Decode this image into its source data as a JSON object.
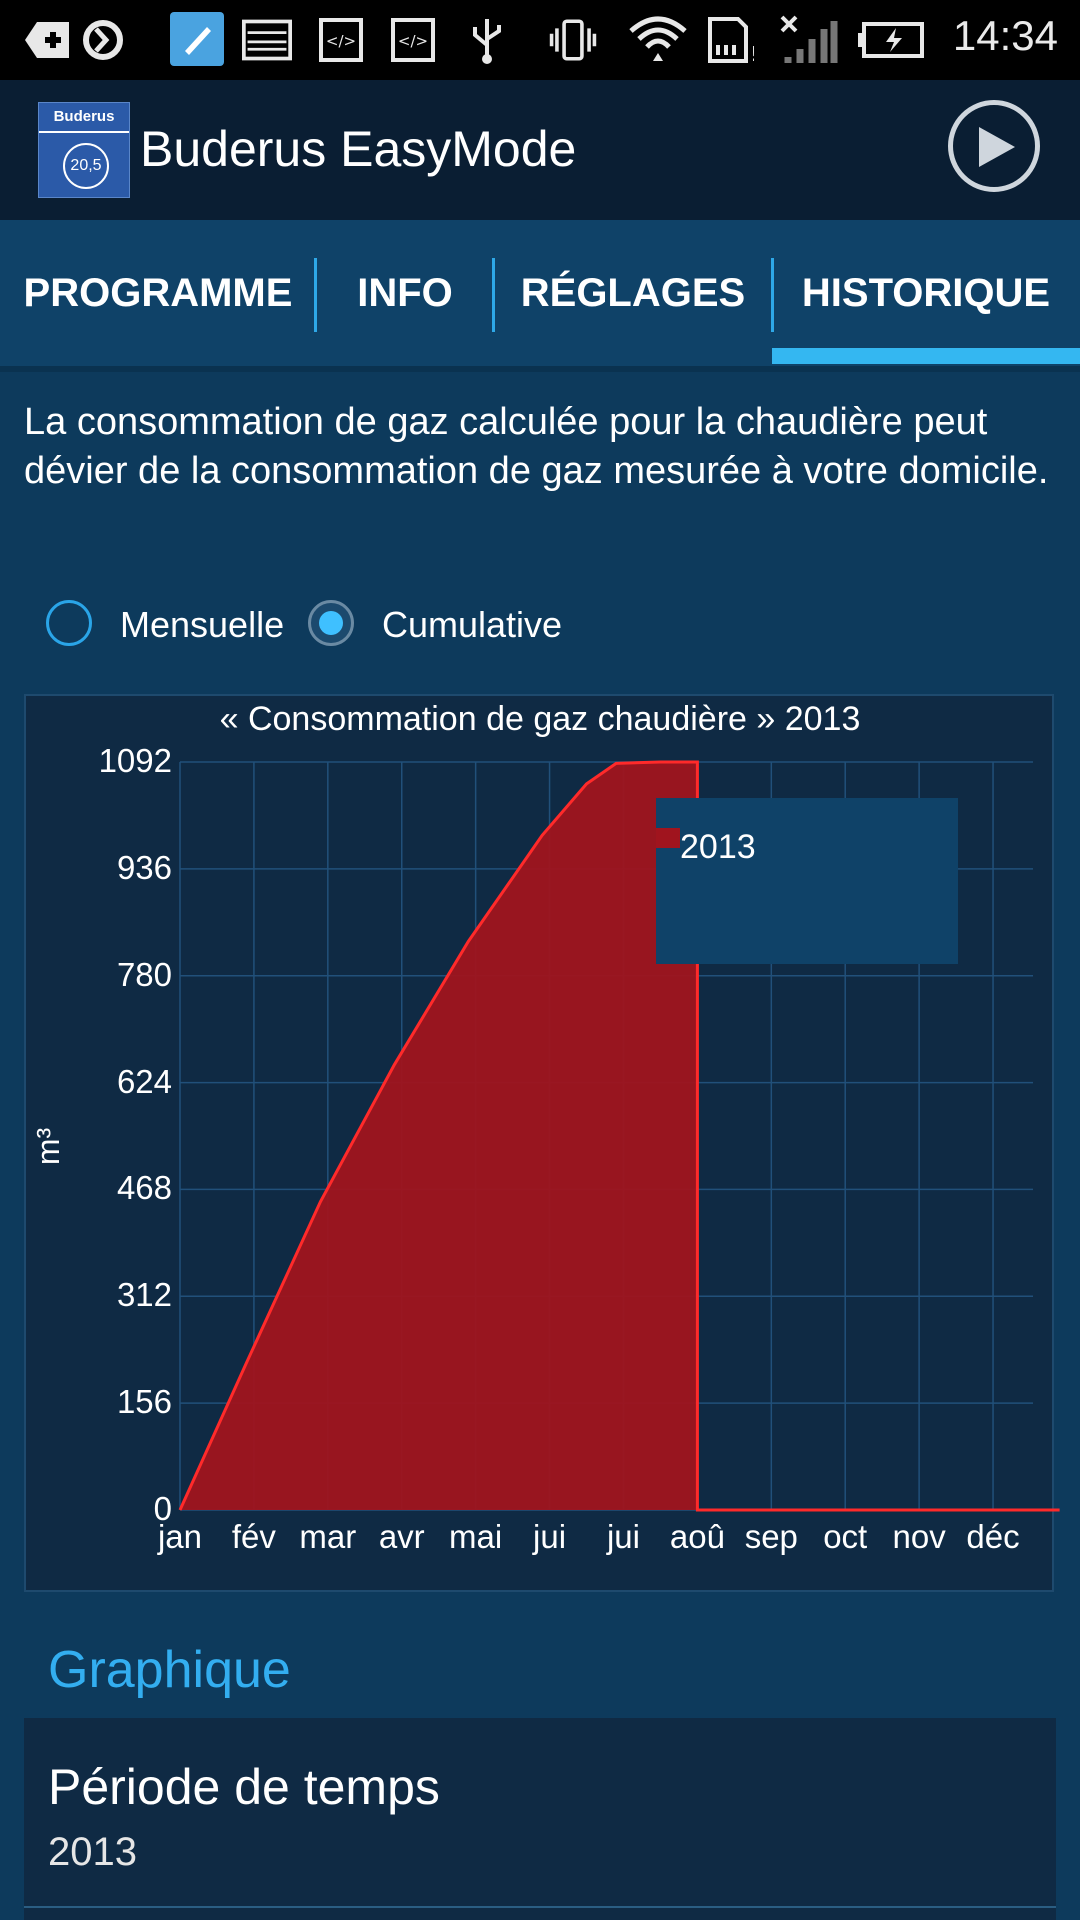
{
  "status_bar": {
    "time": "14:34",
    "icons": [
      "add-box-icon",
      "sync-icon",
      "brush-app-icon",
      "screenshot-icon",
      "code-icon",
      "code-icon",
      "usb-icon",
      "vibrate-icon",
      "wifi-icon",
      "sd-card-icon",
      "no-signal-icon",
      "battery-charging-icon"
    ]
  },
  "app_bar": {
    "title": "Buderus EasyMode",
    "logo_text": "Buderus",
    "logo_badge": "20,5"
  },
  "tabs": [
    {
      "label": "PROGRAMME"
    },
    {
      "label": "INFO"
    },
    {
      "label": "RÉGLAGES"
    },
    {
      "label": "HISTORIQUE",
      "selected": true
    }
  ],
  "description": "La consommation de gaz calculée pour la chaudière peut dévier de la consommation de gaz mesurée à votre domicile.",
  "view_mode": {
    "options": [
      {
        "label": "Mensuelle",
        "selected": false
      },
      {
        "label": "Cumulative",
        "selected": true
      }
    ]
  },
  "chart_data": {
    "type": "area",
    "title": "« Consommation de gaz chaudière » 2013",
    "ylabel": "m³",
    "xlabel": "",
    "categories": [
      "jan",
      "fév",
      "mar",
      "avr",
      "mai",
      "jui",
      "jui",
      "aoû",
      "sep",
      "oct",
      "nov",
      "déc"
    ],
    "yticks": [
      "0",
      "156",
      "312",
      "468",
      "624",
      "780",
      "936",
      "1092"
    ],
    "ylim": [
      0,
      1092
    ],
    "grid": true,
    "legend_position": "top-right",
    "series": [
      {
        "name": "2013",
        "color": "#a0141e",
        "x": [
          0,
          0.9,
          1.9,
          2.9,
          3.9,
          4.9,
          5.5,
          5.9,
          6.5,
          7.0,
          7.0,
          11.9
        ],
        "values": [
          0,
          215,
          450,
          650,
          830,
          985,
          1060,
          1090,
          1092,
          1092,
          0,
          0
        ]
      }
    ]
  },
  "settings_section": {
    "title": "Graphique",
    "items": [
      {
        "label": "Période de temps",
        "value": "2013"
      }
    ]
  }
}
